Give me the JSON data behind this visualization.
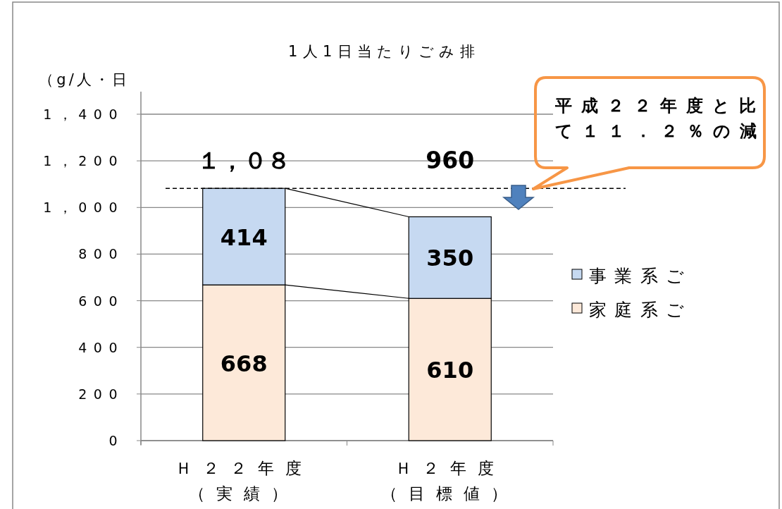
{
  "chart_data": {
    "type": "bar",
    "title": "1人1日当たりごみ排",
    "ylabel": "（g/人・日",
    "categories": [
      "Ｈ２２年度（実績）",
      "Ｈ２年度（目標値）"
    ],
    "stacked": true,
    "series": [
      {
        "name": "家庭系ご",
        "color": "#fde9d9",
        "values": [
          668,
          610
        ]
      },
      {
        "name": "事業系ご",
        "color": "#c6d9f1",
        "values": [
          414,
          350
        ]
      }
    ],
    "totals": [
      "１，０８",
      "960"
    ],
    "data_labels": true,
    "ylim": [
      0,
      1400
    ],
    "yticks": [
      0,
      200,
      400,
      600,
      800,
      {
        "value": 1000,
        "label": "1，000"
      },
      {
        "value": 1200,
        "label": "1，200"
      },
      {
        "value": 1400,
        "label": "1，400"
      }
    ],
    "grid": "y",
    "legend": "right",
    "ref_lines": [
      {
        "axis": "y",
        "value": 1082,
        "line_style": "dashed",
        "color": "#000000"
      }
    ],
    "annotations": [
      "平成２２年度と比",
      "て１１．２％の減"
    ]
  }
}
